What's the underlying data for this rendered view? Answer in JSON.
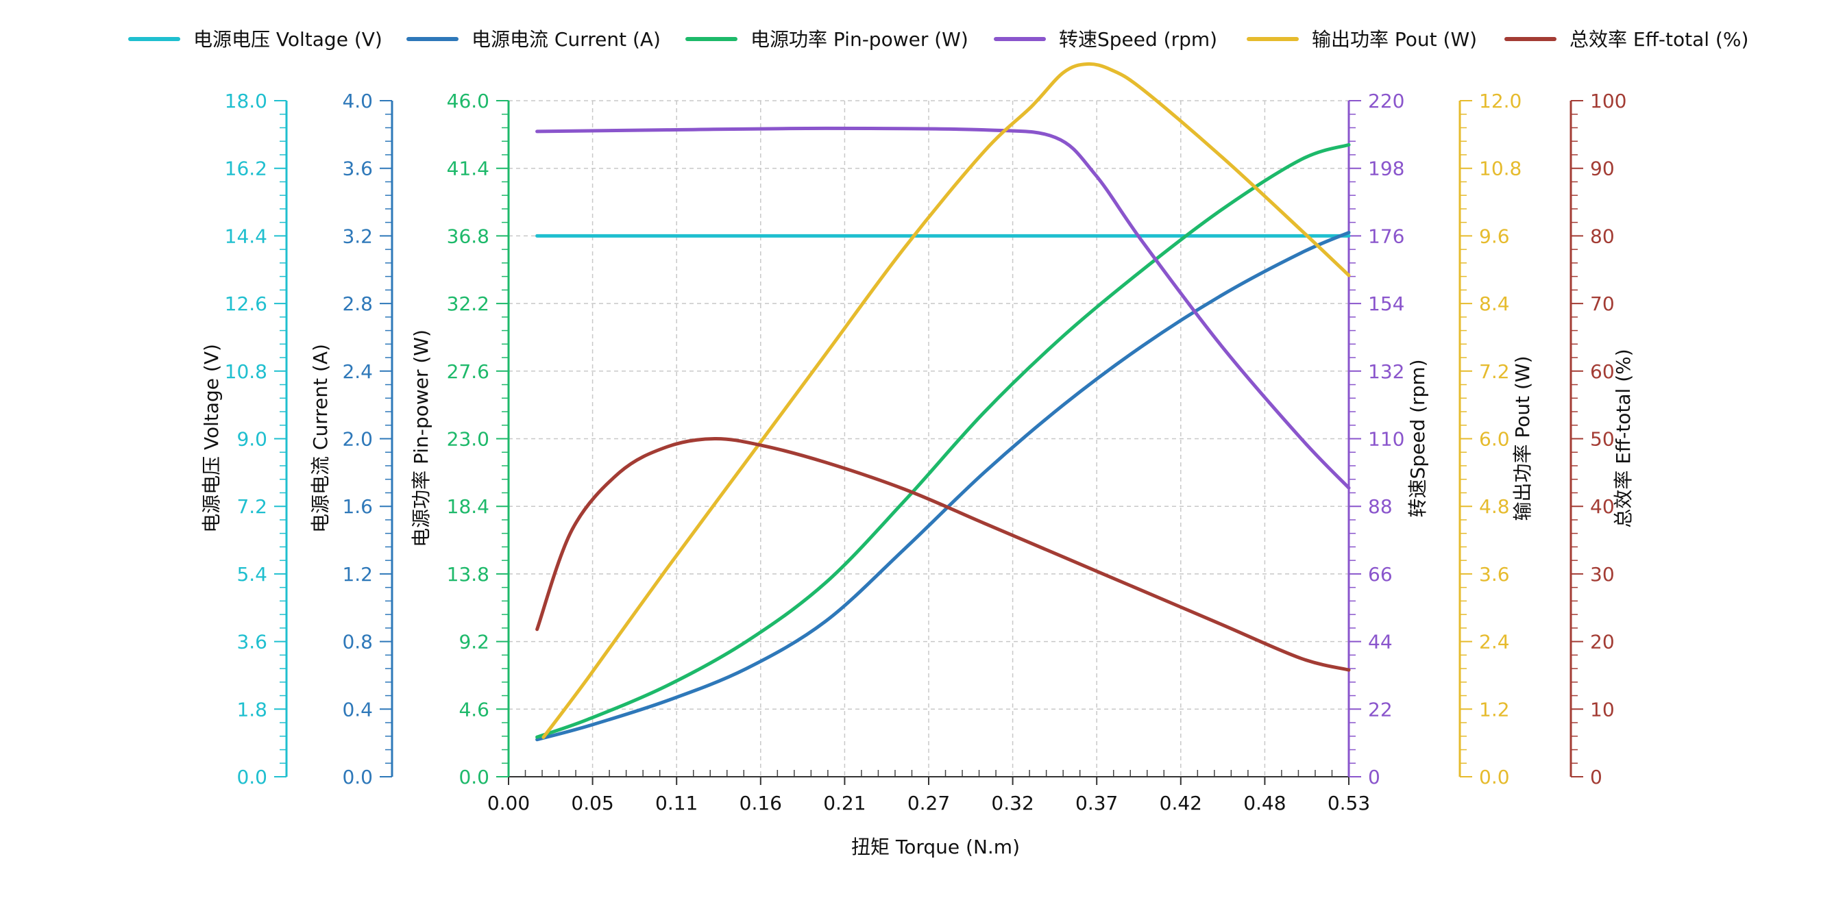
{
  "chart_data": {
    "type": "line",
    "xlabel": "扭矩 Torque (N.m)",
    "xlim": [
      0,
      0.53
    ],
    "xticks": [
      "0.00",
      "0.05",
      "0.11",
      "0.16",
      "0.21",
      "0.27",
      "0.32",
      "0.37",
      "0.42",
      "0.48",
      "0.53"
    ],
    "grid": true,
    "legend_position": "top",
    "axes": [
      {
        "id": "voltage",
        "label": "电源电压 Voltage (V)",
        "side": "left",
        "color": "#1fbfcf",
        "min": 0,
        "max": 18,
        "ticks": [
          "0.0",
          "1.8",
          "3.6",
          "5.4",
          "7.2",
          "9.0",
          "10.8",
          "12.6",
          "14.4",
          "16.2",
          "18.0"
        ]
      },
      {
        "id": "current",
        "label": "电源电流 Current (A)",
        "side": "left",
        "color": "#2e78b9",
        "min": 0,
        "max": 4,
        "ticks": [
          "0.0",
          "0.4",
          "0.8",
          "1.2",
          "1.6",
          "2.0",
          "2.4",
          "2.8",
          "3.2",
          "3.6",
          "4.0"
        ]
      },
      {
        "id": "pin",
        "label": "电源功率 Pin-power (W)",
        "side": "left",
        "color": "#1db96a",
        "min": 0,
        "max": 46,
        "ticks": [
          "0.0",
          "4.6",
          "9.2",
          "13.8",
          "18.4",
          "23.0",
          "27.6",
          "32.2",
          "36.8",
          "41.4",
          "46.0"
        ]
      },
      {
        "id": "speed",
        "label": "转速Speed (rpm)",
        "side": "right",
        "color": "#8a55cc",
        "min": 0,
        "max": 220,
        "ticks": [
          "0",
          "22",
          "44",
          "66",
          "88",
          "110",
          "132",
          "154",
          "176",
          "198",
          "220"
        ]
      },
      {
        "id": "pout",
        "label": "输出功率 Pout (W)",
        "side": "right",
        "color": "#e6bb2d",
        "min": 0,
        "max": 12,
        "ticks": [
          "0.0",
          "1.2",
          "2.4",
          "3.6",
          "4.8",
          "6.0",
          "7.2",
          "8.4",
          "9.6",
          "10.8",
          "12.0"
        ]
      },
      {
        "id": "eff",
        "label": "总效率 Eff-total (%)",
        "side": "right",
        "color": "#a33c34",
        "min": 0,
        "max": 100,
        "ticks": [
          "0",
          "10",
          "20",
          "30",
          "40",
          "50",
          "60",
          "70",
          "80",
          "90",
          "100"
        ]
      }
    ],
    "series": [
      {
        "name": "电源电压 Voltage (V)",
        "axis": "voltage",
        "color": "#1fbfcf",
        "points": [
          [
            0.018,
            14.4
          ],
          [
            0.1,
            14.4
          ],
          [
            0.2,
            14.4
          ],
          [
            0.3,
            14.4
          ],
          [
            0.4,
            14.4
          ],
          [
            0.53,
            14.4
          ]
        ]
      },
      {
        "name": "电源电流 Current (A)",
        "axis": "current",
        "color": "#2e78b9",
        "points": [
          [
            0.018,
            0.22
          ],
          [
            0.05,
            0.3
          ],
          [
            0.1,
            0.45
          ],
          [
            0.15,
            0.64
          ],
          [
            0.2,
            0.92
          ],
          [
            0.25,
            1.35
          ],
          [
            0.3,
            1.8
          ],
          [
            0.35,
            2.2
          ],
          [
            0.4,
            2.55
          ],
          [
            0.45,
            2.85
          ],
          [
            0.5,
            3.1
          ],
          [
            0.53,
            3.22
          ]
        ]
      },
      {
        "name": "电源功率 Pin-power (W)",
        "axis": "pin",
        "color": "#1db96a",
        "points": [
          [
            0.018,
            2.7
          ],
          [
            0.05,
            3.9
          ],
          [
            0.1,
            6.2
          ],
          [
            0.15,
            9.2
          ],
          [
            0.2,
            13.2
          ],
          [
            0.25,
            18.8
          ],
          [
            0.3,
            24.8
          ],
          [
            0.35,
            30.0
          ],
          [
            0.4,
            34.5
          ],
          [
            0.45,
            38.6
          ],
          [
            0.5,
            42.0
          ],
          [
            0.53,
            43.0
          ]
        ]
      },
      {
        "name": "转速Speed (rpm)",
        "axis": "speed",
        "color": "#8a55cc",
        "points": [
          [
            0.018,
            210
          ],
          [
            0.1,
            210.5
          ],
          [
            0.2,
            211
          ],
          [
            0.3,
            210.5
          ],
          [
            0.345,
            208
          ],
          [
            0.37,
            196
          ],
          [
            0.4,
            174
          ],
          [
            0.45,
            140
          ],
          [
            0.5,
            110
          ],
          [
            0.53,
            94
          ]
        ]
      },
      {
        "name": "输出功率 Pout (W)",
        "axis": "pout",
        "color": "#e6bb2d",
        "points": [
          [
            0.022,
            0.7
          ],
          [
            0.05,
            1.75
          ],
          [
            0.1,
            3.7
          ],
          [
            0.15,
            5.6
          ],
          [
            0.2,
            7.5
          ],
          [
            0.25,
            9.4
          ],
          [
            0.3,
            11.1
          ],
          [
            0.33,
            11.9
          ],
          [
            0.35,
            12.5
          ],
          [
            0.365,
            12.65
          ],
          [
            0.38,
            12.55
          ],
          [
            0.4,
            12.2
          ],
          [
            0.45,
            11.0
          ],
          [
            0.5,
            9.7
          ],
          [
            0.53,
            8.9
          ]
        ]
      },
      {
        "name": "总效率 Eff-total (%)",
        "axis": "eff",
        "color": "#a33c34",
        "points": [
          [
            0.018,
            21.8
          ],
          [
            0.04,
            36.5
          ],
          [
            0.07,
            45.0
          ],
          [
            0.1,
            48.8
          ],
          [
            0.13,
            50.0
          ],
          [
            0.16,
            49.0
          ],
          [
            0.2,
            46.5
          ],
          [
            0.25,
            42.5
          ],
          [
            0.3,
            37.5
          ],
          [
            0.35,
            32.5
          ],
          [
            0.4,
            27.5
          ],
          [
            0.45,
            22.5
          ],
          [
            0.5,
            17.5
          ],
          [
            0.53,
            15.8
          ]
        ]
      }
    ]
  }
}
